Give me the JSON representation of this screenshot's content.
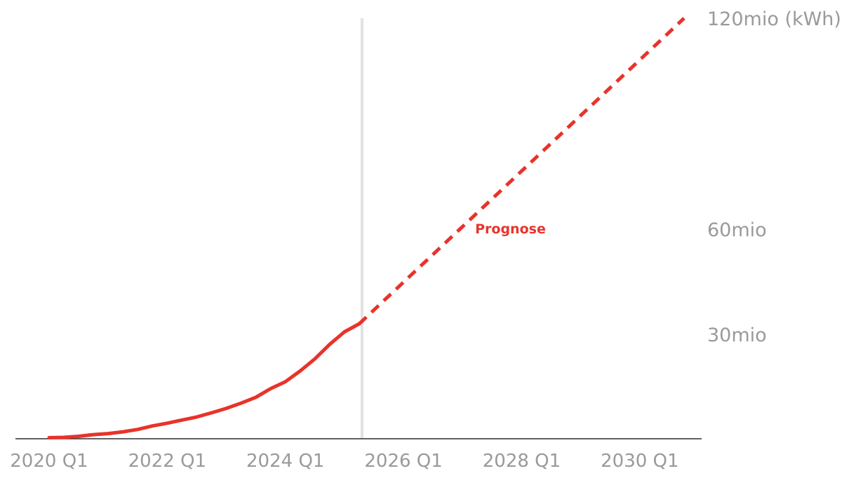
{
  "chart_data": {
    "type": "line",
    "x_tick_labels": [
      "2020 Q1",
      "2022 Q1",
      "2024 Q1",
      "2026 Q1",
      "2028 Q1",
      "2030 Q1"
    ],
    "y_tick_labels": [
      "30mio",
      "60mio",
      "120mio (kWh)"
    ],
    "y_tick_values": [
      30,
      60,
      120
    ],
    "y_unit": "mio kWh",
    "ylim": [
      0,
      120
    ],
    "xlim": [
      "2020 Q1",
      "2031 Q1"
    ],
    "grid": false,
    "series": [
      {
        "style": "solid",
        "color": "#e8332b",
        "x": [
          "2020 Q1",
          "2020 Q2",
          "2020 Q3",
          "2020 Q4",
          "2021 Q1",
          "2021 Q2",
          "2021 Q3",
          "2021 Q4",
          "2022 Q1",
          "2022 Q2",
          "2022 Q3",
          "2022 Q4",
          "2023 Q1",
          "2023 Q2",
          "2023 Q3",
          "2023 Q4",
          "2024 Q1",
          "2024 Q2",
          "2024 Q3",
          "2024 Q4",
          "2025 Q1",
          "2025 Q2"
        ],
        "values": [
          0.1,
          0.2,
          0.5,
          1.0,
          1.3,
          1.8,
          2.5,
          3.5,
          4.3,
          5.2,
          6.1,
          7.3,
          8.6,
          10.1,
          11.8,
          14.3,
          16.3,
          19.4,
          22.9,
          27.1,
          30.7,
          33.0
        ]
      },
      {
        "name": "Prognose",
        "style": "dashed",
        "color": "#e8332b",
        "x": [
          "2025 Q2",
          "2030 Q4"
        ],
        "values": [
          33.0,
          120.0
        ]
      }
    ],
    "forecast_divider": "2025 Q2",
    "divider_color": "#e2e2e2",
    "annotations": [
      {
        "text": "Prognose",
        "x": "2028 Q1",
        "y": 60,
        "color": "#e8332b"
      }
    ]
  }
}
